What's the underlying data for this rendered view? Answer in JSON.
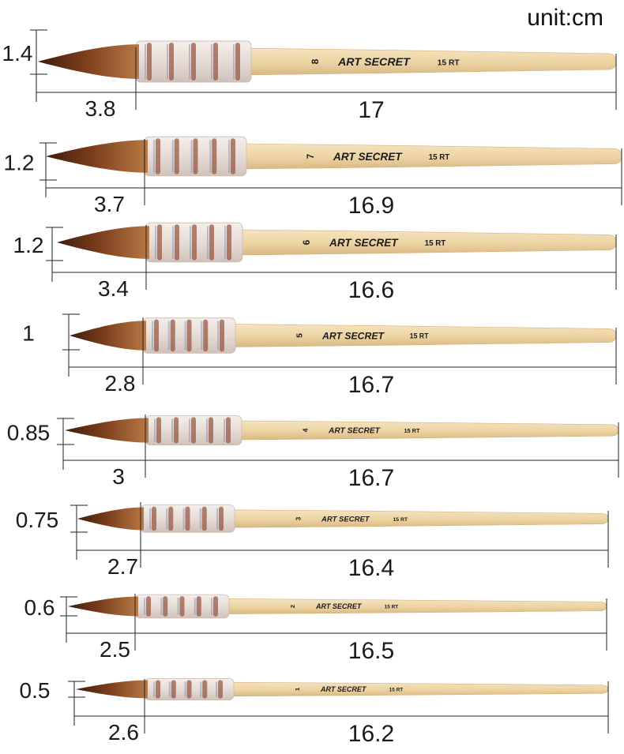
{
  "unit_label": "unit:cm",
  "colors": {
    "background": "#ffffff",
    "wood": "#ecd3a2",
    "wood_shadow": "#d9b883",
    "ferrule": "#e7dcd6",
    "band": "#9a5a46",
    "hair_dark": "#3e1c0c",
    "hair_mid": "#7a3d1c",
    "hair_light": "#b97a45",
    "text": "#1b1b1b",
    "dim_line": "#222222"
  },
  "brushes": [
    {
      "size": "8",
      "brand": "ART SECRET",
      "code": "15 RT",
      "width_cm": "1.4",
      "head_cm": "3.8",
      "handle_cm": "17"
    },
    {
      "size": "7",
      "brand": "ART SECRET",
      "code": "15 RT",
      "width_cm": "1.2",
      "head_cm": "3.7",
      "handle_cm": "16.9"
    },
    {
      "size": "6",
      "brand": "ART SECRET",
      "code": "15 RT",
      "width_cm": "1.2",
      "head_cm": "3.4",
      "handle_cm": "16.6"
    },
    {
      "size": "5",
      "brand": "ART SECRET",
      "code": "15 RT",
      "width_cm": "1",
      "head_cm": "2.8",
      "handle_cm": "16.7"
    },
    {
      "size": "4",
      "brand": "ART SECRET",
      "code": "15 RT",
      "width_cm": "0.85",
      "head_cm": "3",
      "handle_cm": "16.7"
    },
    {
      "size": "3",
      "brand": "ART SECRET",
      "code": "15 RT",
      "width_cm": "0.75",
      "head_cm": "2.7",
      "handle_cm": "16.4"
    },
    {
      "size": "2",
      "brand": "ART SECRET",
      "code": "15 RT",
      "width_cm": "0.6",
      "head_cm": "2.5",
      "handle_cm": "16.5"
    },
    {
      "size": "1",
      "brand": "ART SECRET",
      "code": "15 RT",
      "width_cm": "0.5",
      "head_cm": "2.6",
      "handle_cm": "16.2"
    }
  ]
}
